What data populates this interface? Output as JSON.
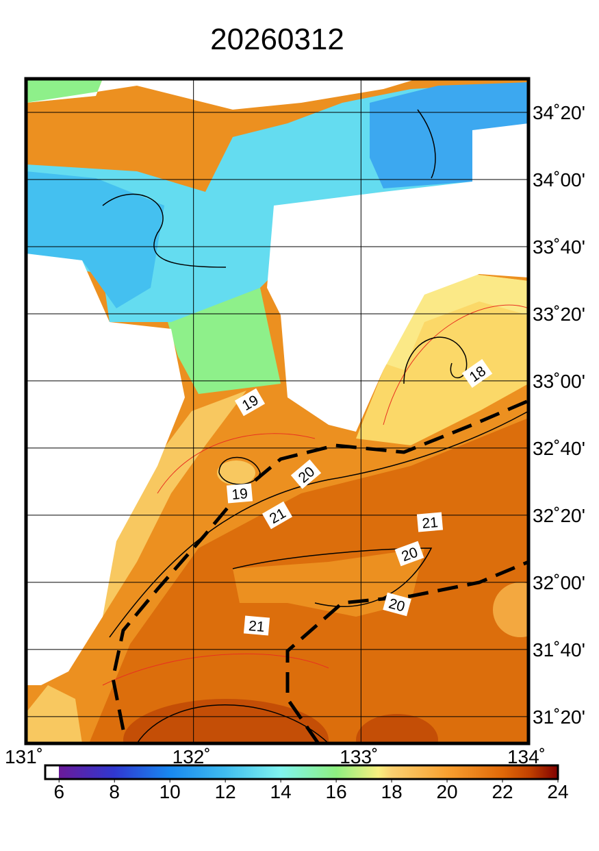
{
  "map": {
    "title": "20260312",
    "lon_range": [
      131,
      134
    ],
    "lat_range": [
      31.2,
      34.5
    ],
    "lon_ticks": [
      {
        "value": 131,
        "label": "131˚"
      },
      {
        "value": 132,
        "label": "132˚"
      },
      {
        "value": 133,
        "label": "133˚"
      },
      {
        "value": 134,
        "label": "134˚"
      }
    ],
    "lat_ticks": [
      {
        "value": 34.3333,
        "label": "34˚20'"
      },
      {
        "value": 34,
        "label": "34˚00'"
      },
      {
        "value": 33.6667,
        "label": "33˚40'"
      },
      {
        "value": 33.3333,
        "label": "33˚20'"
      },
      {
        "value": 33,
        "label": "33˚00'"
      },
      {
        "value": 32.6667,
        "label": "32˚40'"
      },
      {
        "value": 32.3333,
        "label": "32˚20'"
      },
      {
        "value": 32,
        "label": "32˚00'"
      },
      {
        "value": 31.6667,
        "label": "31˚40'"
      },
      {
        "value": 31.3333,
        "label": "31˚20'"
      }
    ],
    "colorbar_range": [
      5.5,
      24
    ],
    "colorbar_ticks": [
      6,
      8,
      10,
      12,
      14,
      16,
      18,
      20,
      22,
      24
    ],
    "contour_labels": [
      "18",
      "19",
      "19",
      "20",
      "21",
      "21",
      "20",
      "20",
      "21"
    ]
  }
}
